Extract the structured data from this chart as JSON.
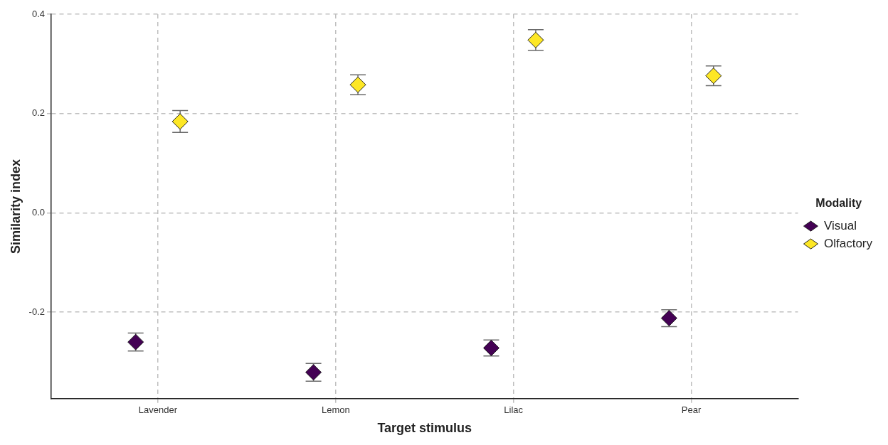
{
  "chart_data": {
    "type": "scatter",
    "xlabel": "Target stimulus",
    "ylabel": "Similarity index",
    "legend_title": "Modality",
    "categories": [
      "Lavender",
      "Lemon",
      "Lilac",
      "Pear"
    ],
    "series": [
      {
        "name": "Visual",
        "color": "#440154",
        "x": [
          "Lavender",
          "Lemon",
          "Lilac",
          "Pear"
        ],
        "values": [
          -0.26,
          -0.321,
          -0.272,
          -0.212
        ],
        "errors": [
          0.018,
          0.018,
          0.016,
          0.017
        ]
      },
      {
        "name": "Olfactory",
        "color": "#fde725",
        "x": [
          "Lavender",
          "Lemon",
          "Lilac",
          "Pear"
        ],
        "values": [
          0.184,
          0.258,
          0.348,
          0.276
        ],
        "errors": [
          0.022,
          0.02,
          0.021,
          0.02
        ]
      }
    ],
    "ylim": [
      -0.374,
      0.4
    ],
    "yticks": [
      {
        "value": -0.2,
        "label": "-0.2"
      },
      {
        "value": 0,
        "label": "0.0"
      },
      {
        "value": 0.2,
        "label": "0.2"
      },
      {
        "value": 0.4,
        "label": "0.4"
      }
    ],
    "grid": true,
    "legend": "right",
    "marker": "diamond"
  }
}
